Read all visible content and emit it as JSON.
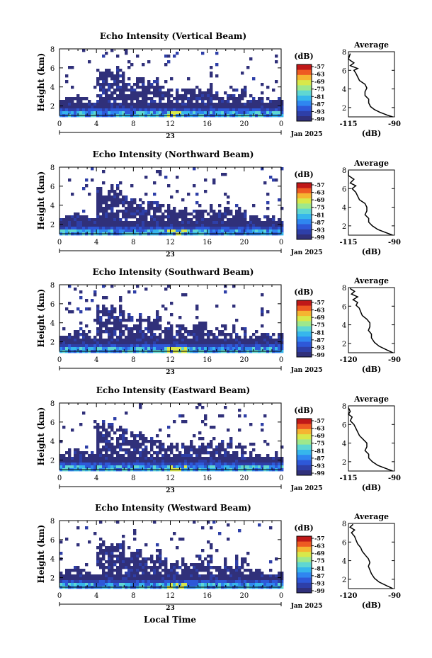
{
  "figure": {
    "xlabel": "Local Time",
    "date_label": "Jan 2025",
    "day_label": "23",
    "colorbar_unit": "(dB)",
    "colorbar_ticks": [
      "-57",
      "-63",
      "-69",
      "-75",
      "-81",
      "-87",
      "-93",
      "-99"
    ],
    "colormap": [
      "#30307a",
      "#2e3fa8",
      "#2e58d8",
      "#2f86f0",
      "#36b6ec",
      "#5fd7d2",
      "#9ee88c",
      "#d8e84a",
      "#f5b531",
      "#ee5a22",
      "#c01818"
    ],
    "main_xticks": [
      "0",
      "4",
      "8",
      "12",
      "16",
      "20",
      "0"
    ],
    "main_yticks": [
      "2",
      "4",
      "6",
      "8"
    ]
  },
  "chart_data": [
    {
      "type": "heatmap",
      "title": "Echo Intensity (Vertical Beam)",
      "ylabel": "Height (km)",
      "xlim": [
        0,
        24
      ],
      "ylim": [
        1,
        8
      ],
      "colorbar_range": [
        -99,
        -57
      ],
      "average_profile": {
        "title": "Average",
        "xlabel": "(dB)",
        "xticks": [
          "-115",
          "-90"
        ],
        "xlim": [
          -115,
          -90
        ],
        "ylim": [
          1,
          8
        ],
        "points": [
          [
            -91,
            1.0
          ],
          [
            -94,
            1.2
          ],
          [
            -98,
            1.5
          ],
          [
            -101,
            1.8
          ],
          [
            -103,
            2.1
          ],
          [
            -104,
            2.5
          ],
          [
            -104,
            2.9
          ],
          [
            -106,
            3.3
          ],
          [
            -106,
            3.7
          ],
          [
            -105,
            4.1
          ],
          [
            -106,
            4.5
          ],
          [
            -109,
            4.9
          ],
          [
            -110,
            5.3
          ],
          [
            -111,
            5.7
          ],
          [
            -112,
            6.0
          ],
          [
            -110,
            6.2
          ],
          [
            -114,
            6.5
          ],
          [
            -112,
            6.8
          ],
          [
            -115,
            7.2
          ],
          [
            -114,
            7.8
          ]
        ]
      }
    },
    {
      "type": "heatmap",
      "title": "Echo Intensity (Northward Beam)",
      "ylabel": "Height (km)",
      "xlim": [
        0,
        24
      ],
      "ylim": [
        1,
        8
      ],
      "colorbar_range": [
        -99,
        -57
      ],
      "average_profile": {
        "title": "Average",
        "xlabel": "(dB)",
        "xticks": [
          "-115",
          "-90"
        ],
        "xlim": [
          -115,
          -90
        ],
        "ylim": [
          1,
          8
        ],
        "points": [
          [
            -91,
            1.0
          ],
          [
            -95,
            1.3
          ],
          [
            -99,
            1.6
          ],
          [
            -102,
            2.0
          ],
          [
            -104,
            2.4
          ],
          [
            -104,
            2.8
          ],
          [
            -106,
            3.2
          ],
          [
            -105,
            3.6
          ],
          [
            -105,
            4.0
          ],
          [
            -106,
            4.4
          ],
          [
            -109,
            4.8
          ],
          [
            -110,
            5.2
          ],
          [
            -111,
            5.6
          ],
          [
            -113,
            6.0
          ],
          [
            -111,
            6.3
          ],
          [
            -114,
            6.6
          ],
          [
            -112,
            7.0
          ],
          [
            -115,
            7.4
          ],
          [
            -115,
            7.9
          ]
        ]
      }
    },
    {
      "type": "heatmap",
      "title": "Echo Intensity (Southward Beam)",
      "ylabel": "Height (km)",
      "xlim": [
        0,
        24
      ],
      "ylim": [
        1,
        8
      ],
      "colorbar_range": [
        -99,
        -57
      ],
      "average_profile": {
        "title": "Average",
        "xlabel": "(dB)",
        "xticks": [
          "-120",
          "-90"
        ],
        "xlim": [
          -120,
          -90
        ],
        "ylim": [
          1,
          8
        ],
        "points": [
          [
            -91,
            1.0
          ],
          [
            -95,
            1.3
          ],
          [
            -100,
            1.7
          ],
          [
            -103,
            2.1
          ],
          [
            -105,
            2.6
          ],
          [
            -105,
            3.0
          ],
          [
            -107,
            3.4
          ],
          [
            -106,
            3.8
          ],
          [
            -106,
            4.2
          ],
          [
            -108,
            4.6
          ],
          [
            -111,
            5.0
          ],
          [
            -112,
            5.4
          ],
          [
            -113,
            5.8
          ],
          [
            -115,
            6.1
          ],
          [
            -114,
            6.4
          ],
          [
            -117,
            6.7
          ],
          [
            -114,
            7.0
          ],
          [
            -118,
            7.3
          ],
          [
            -116,
            7.6
          ],
          [
            -119,
            7.9
          ]
        ]
      }
    },
    {
      "type": "heatmap",
      "title": "Echo Intensity (Eastward Beam)",
      "ylabel": "Height (km)",
      "xlim": [
        0,
        24
      ],
      "ylim": [
        1,
        8
      ],
      "colorbar_range": [
        -99,
        -57
      ],
      "average_profile": {
        "title": "Average",
        "xlabel": "(dB)",
        "xticks": [
          "-115",
          "-90"
        ],
        "xlim": [
          -115,
          -90
        ],
        "ylim": [
          1,
          8
        ],
        "points": [
          [
            -91,
            1.0
          ],
          [
            -95,
            1.3
          ],
          [
            -99,
            1.6
          ],
          [
            -102,
            2.0
          ],
          [
            -104,
            2.4
          ],
          [
            -104,
            2.8
          ],
          [
            -106,
            3.2
          ],
          [
            -105,
            3.6
          ],
          [
            -105,
            4.0
          ],
          [
            -107,
            4.4
          ],
          [
            -109,
            4.8
          ],
          [
            -110,
            5.2
          ],
          [
            -111,
            5.6
          ],
          [
            -112,
            6.0
          ],
          [
            -114,
            6.4
          ],
          [
            -113,
            6.8
          ],
          [
            -115,
            7.1
          ],
          [
            -114,
            7.4
          ],
          [
            -115,
            7.8
          ]
        ]
      }
    },
    {
      "type": "heatmap",
      "title": "Echo Intensity (Westward Beam)",
      "ylabel": "Height (km)",
      "xlim": [
        0,
        24
      ],
      "ylim": [
        1,
        8
      ],
      "colorbar_range": [
        -99,
        -57
      ],
      "average_profile": {
        "title": "Average",
        "xlabel": "(dB)",
        "xticks": [
          "-120",
          "-90"
        ],
        "xlim": [
          -120,
          -90
        ],
        "ylim": [
          1,
          8
        ],
        "points": [
          [
            -91,
            1.0
          ],
          [
            -95,
            1.3
          ],
          [
            -100,
            1.7
          ],
          [
            -103,
            2.1
          ],
          [
            -105,
            2.6
          ],
          [
            -106,
            3.0
          ],
          [
            -107,
            3.4
          ],
          [
            -106,
            3.8
          ],
          [
            -107,
            4.2
          ],
          [
            -109,
            4.6
          ],
          [
            -111,
            5.0
          ],
          [
            -112,
            5.4
          ],
          [
            -114,
            5.8
          ],
          [
            -115,
            6.2
          ],
          [
            -116,
            6.6
          ],
          [
            -118,
            7.0
          ],
          [
            -116,
            7.3
          ],
          [
            -119,
            7.6
          ],
          [
            -117,
            7.9
          ]
        ]
      }
    }
  ]
}
